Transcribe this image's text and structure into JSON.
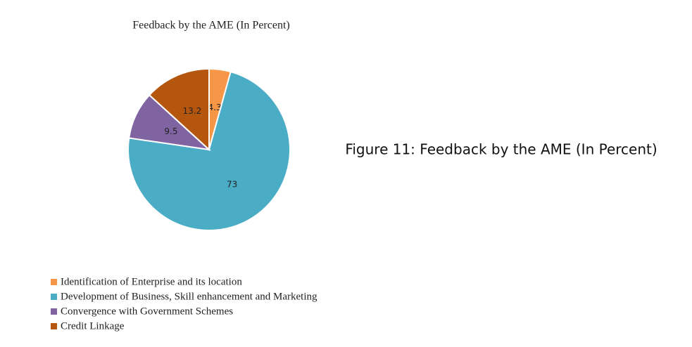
{
  "chart_data": {
    "type": "pie",
    "title": "Feedback by the AME (In Percent)",
    "categories": [
      "Identification of Enterprise and its location",
      "Development of Business, Skill enhancement and Marketing",
      "Convergence with Government Schemes",
      "Credit Linkage"
    ],
    "values": [
      4.3,
      73,
      9.5,
      13.2
    ],
    "colors": [
      "#f79646",
      "#4bacc6",
      "#8064a2",
      "#b5560e"
    ],
    "legend": "bottom-left"
  },
  "caption": "Figure 11:  Feedback by the AME (In Percent)"
}
